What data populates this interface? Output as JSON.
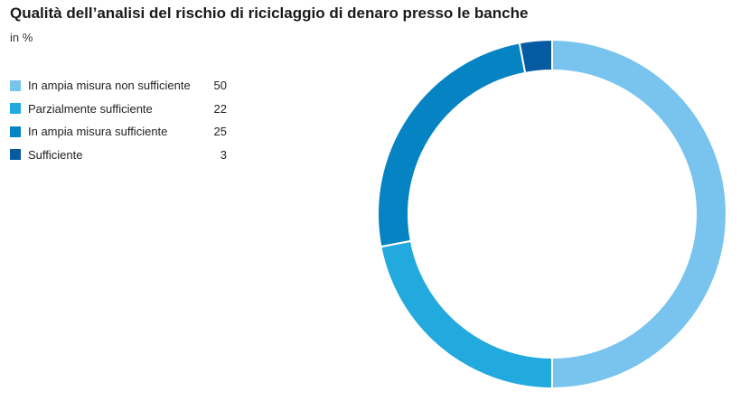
{
  "chart_data": {
    "type": "pie",
    "title": "Qualità dell’analisi del rischio di riciclaggio di denaro presso le banche",
    "subtitle": "in %",
    "legend": "top-left",
    "slices": [
      {
        "label": "In ampia misura non sufficiente",
        "value": 50,
        "color": "#78c4ee"
      },
      {
        "label": "Parzialmente sufficiente",
        "value": 22,
        "color": "#22a9de"
      },
      {
        "label": "In ampia misura sufficiente",
        "value": 25,
        "color": "#0583c2"
      },
      {
        "label": "Sufficiente",
        "value": 3,
        "color": "#065ba2"
      }
    ]
  }
}
